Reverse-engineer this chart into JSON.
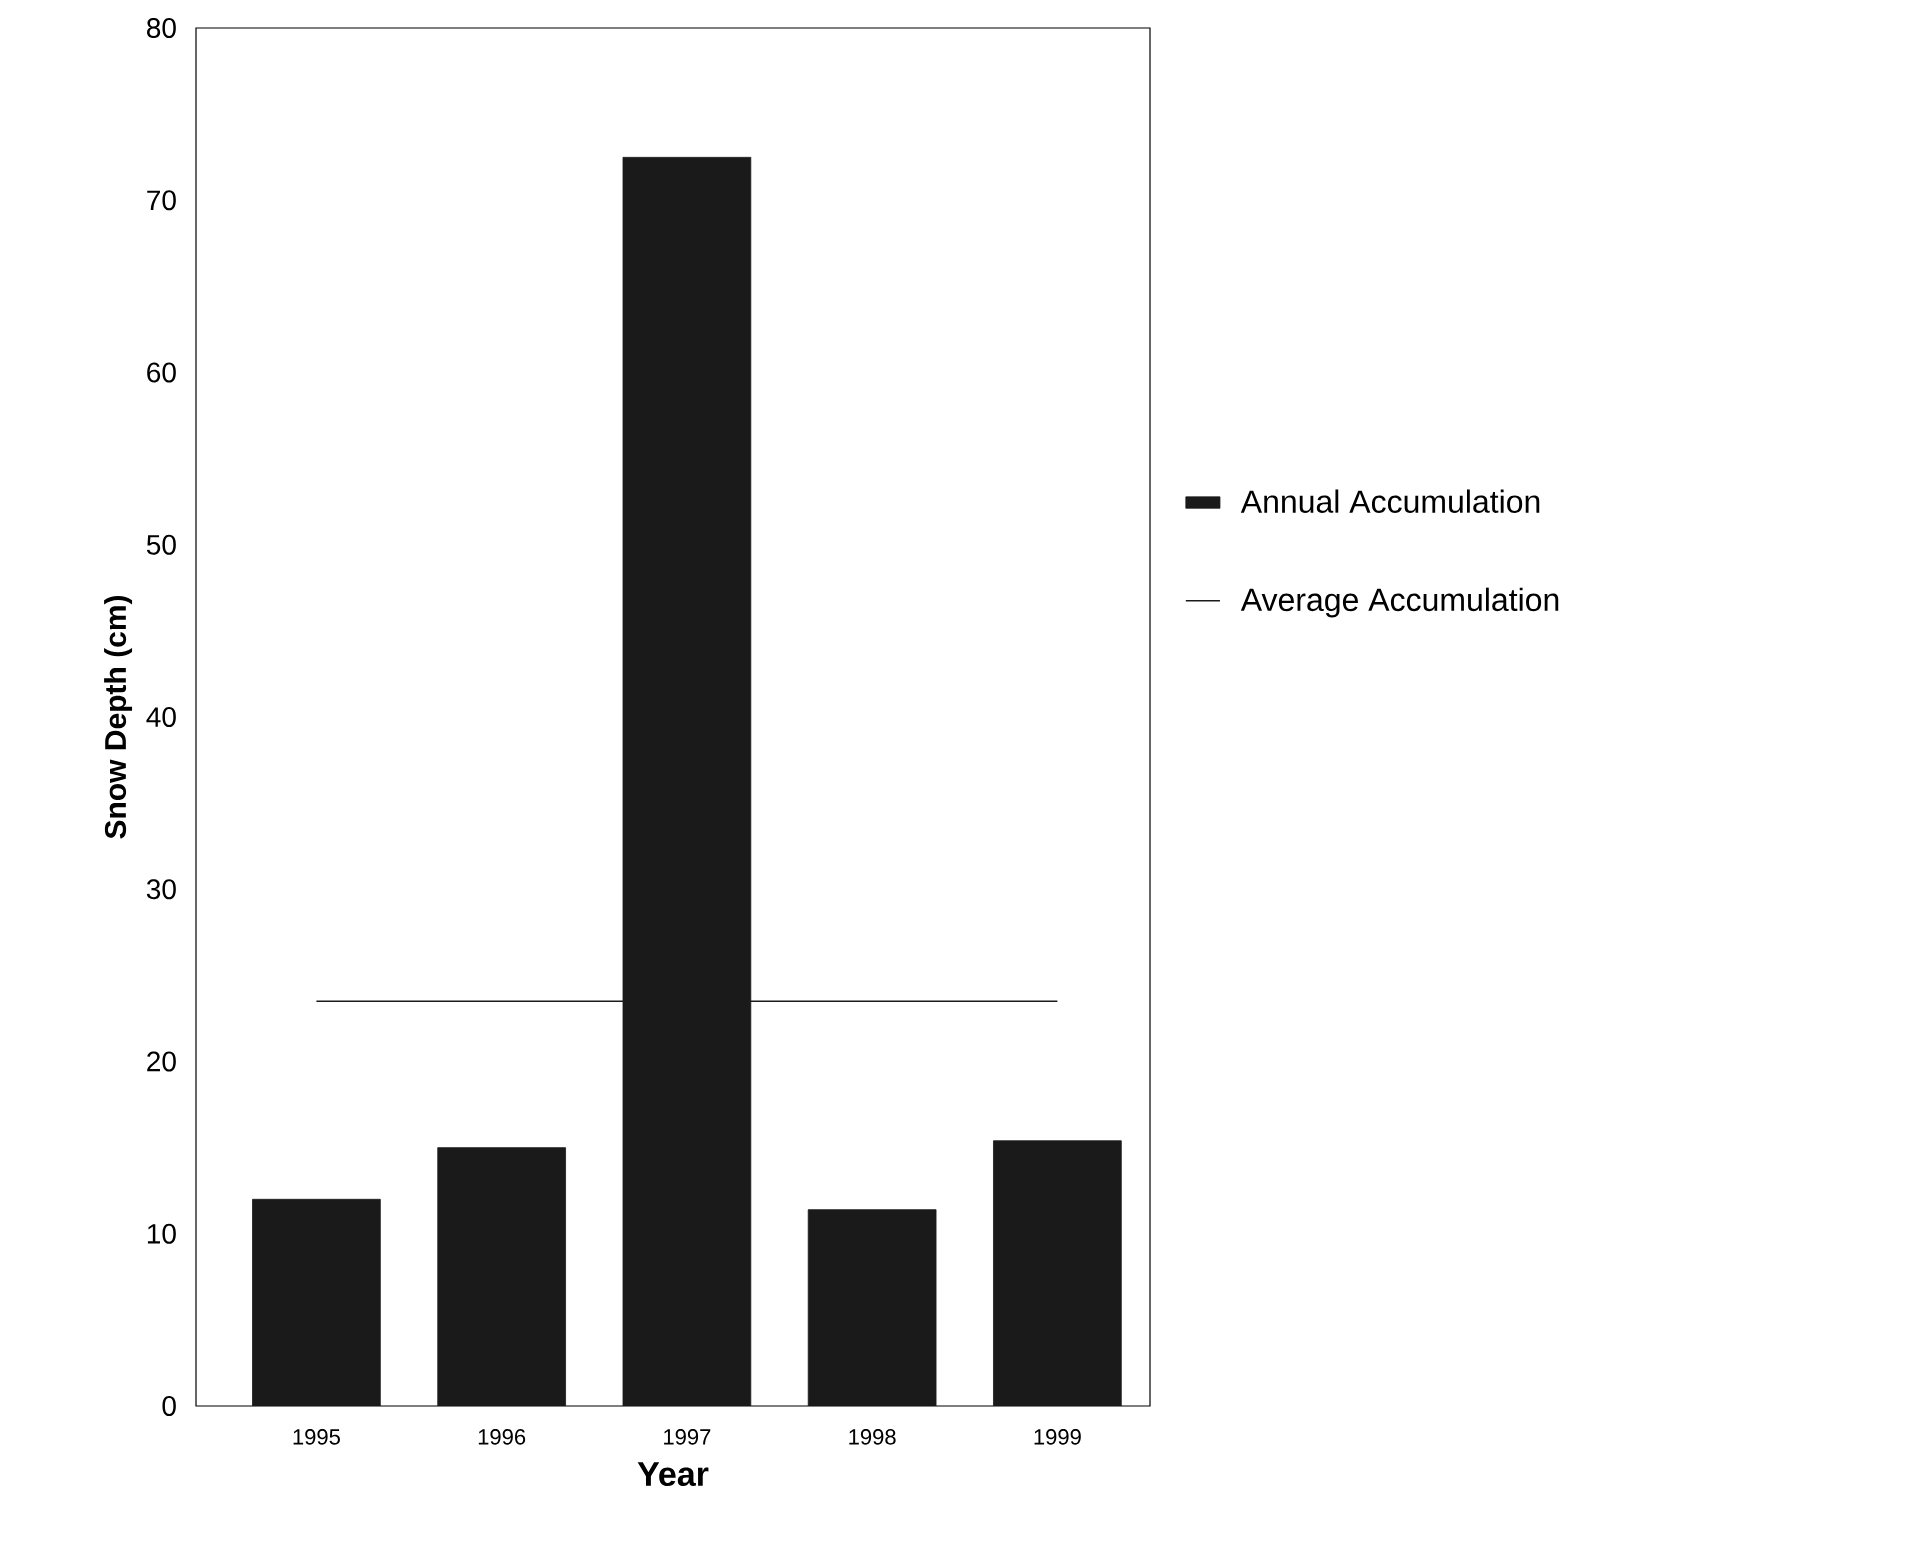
{
  "chart_data": {
    "type": "bar",
    "xlabel": "Year",
    "ylabel": "Snow Depth (cm)",
    "categories": [
      "1995",
      "1996",
      "1997",
      "1998",
      "1999"
    ],
    "series": [
      {
        "name": "Annual Accumulation",
        "color": "#1a1a1a",
        "values": [
          12,
          15,
          72.5,
          11.4,
          15.4
        ]
      },
      {
        "name": "Average Accumulation",
        "type": "line",
        "color": "#1a1a1a",
        "values": [
          23.5,
          23.5,
          23.5,
          23.5,
          23.5
        ]
      }
    ],
    "ylim": [
      0,
      80
    ],
    "yticks": [
      0,
      10,
      20,
      30,
      40,
      50,
      60,
      70,
      80
    ],
    "legend": "right",
    "grid": false
  }
}
